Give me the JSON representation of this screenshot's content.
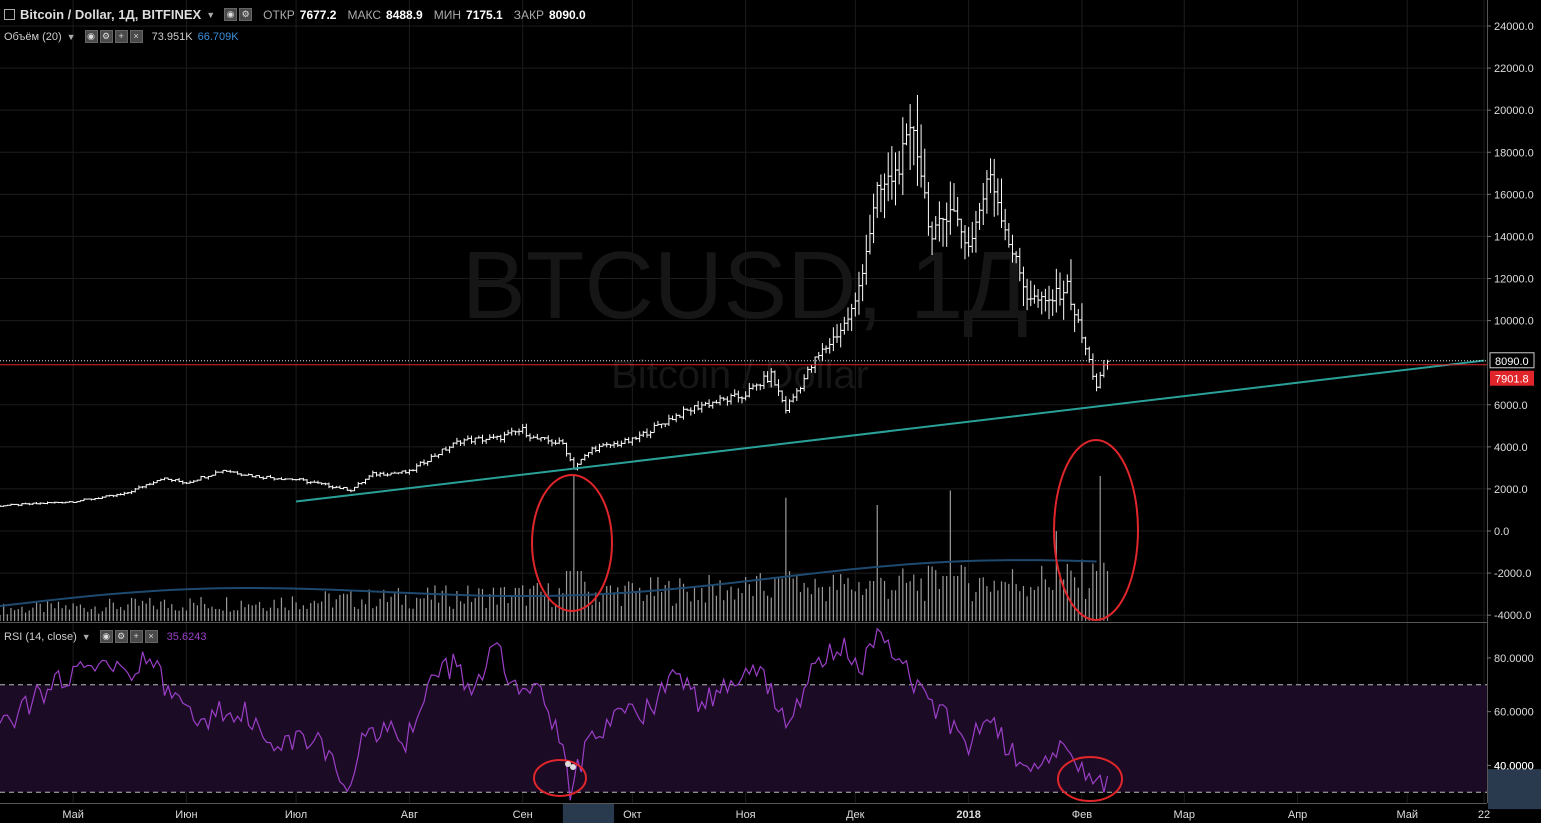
{
  "header": {
    "symbol": "Bitcoin / Dollar, 1Д, BITFINEX",
    "open_label": "ОТКР",
    "open": "7677.2",
    "high_label": "МАКС",
    "high": "8488.9",
    "low_label": "МИН",
    "low": "7175.1",
    "close_label": "ЗАКР",
    "close": "8090.0"
  },
  "volume_legend": {
    "label": "Объём (20)",
    "value1": "73.951K",
    "value2": "66.709K",
    "value2_color": "#3a8fd8"
  },
  "rsi_legend": {
    "label": "RSI (14, close)",
    "value": "35.6243",
    "color": "#9c3fc8"
  },
  "watermark": {
    "big": "BTCUSD, 1Д",
    "small": "Bitcoin / Dollar"
  },
  "price_tags": {
    "last": "8090.0",
    "line": "7901.8",
    "line_color": "#e0262a"
  },
  "colors": {
    "trendline": "#2aa198",
    "volume_ma": "#1e4a70",
    "rsi": "#9c3fc8",
    "rsi_band": "#1b0b24"
  },
  "chart_data": [
    {
      "type": "bar",
      "subtype": "ohlc",
      "title": "Bitcoin / Dollar, 1Д, BITFINEX",
      "y_ticks": [
        24000,
        22000,
        20000,
        18000,
        16000,
        14000,
        12000,
        10000,
        6000,
        4000,
        2000,
        0,
        -2000,
        -4000
      ],
      "y_tick_labels": [
        "24000.0",
        "22000.0",
        "20000.0",
        "18000.0",
        "16000.0",
        "14000.0",
        "12000.0",
        "10000.0",
        "6000.0",
        "4000.0",
        "2000.0",
        "0.0",
        "-2000.0",
        "-4000.0"
      ],
      "ylim": [
        -4000,
        24000
      ],
      "x_tick_labels": [
        "Май",
        "Июн",
        "Июл",
        "Авг",
        "Сен",
        "Окт",
        "Ноя",
        "Дек",
        "2018",
        "Фев",
        "Мар",
        "Апр",
        "Май",
        "22"
      ],
      "xlim": [
        "2017-04-11",
        "2018-05-22"
      ],
      "close_path": [
        [
          "2017-04-11",
          1200
        ],
        [
          "2017-05-01",
          1400
        ],
        [
          "2017-05-15",
          1750
        ],
        [
          "2017-05-25",
          2500
        ],
        [
          "2017-06-01",
          2300
        ],
        [
          "2017-06-11",
          2900
        ],
        [
          "2017-06-20",
          2600
        ],
        [
          "2017-07-01",
          2450
        ],
        [
          "2017-07-16",
          1950
        ],
        [
          "2017-07-22",
          2700
        ],
        [
          "2017-08-01",
          2800
        ],
        [
          "2017-08-05",
          3300
        ],
        [
          "2017-08-15",
          4300
        ],
        [
          "2017-08-25",
          4400
        ],
        [
          "2017-09-01",
          4800
        ],
        [
          "2017-09-04",
          4400
        ],
        [
          "2017-09-12",
          4150
        ],
        [
          "2017-09-15",
          3000
        ],
        [
          "2017-09-20",
          3900
        ],
        [
          "2017-10-01",
          4300
        ],
        [
          "2017-10-12",
          5400
        ],
        [
          "2017-10-20",
          6000
        ],
        [
          "2017-10-31",
          6400
        ],
        [
          "2017-11-08",
          7400
        ],
        [
          "2017-11-12",
          5800
        ],
        [
          "2017-11-20",
          8100
        ],
        [
          "2017-11-28",
          9800
        ],
        [
          "2017-12-01",
          10800
        ],
        [
          "2017-12-07",
          16000
        ],
        [
          "2017-12-12",
          17000
        ],
        [
          "2017-12-17",
          19200
        ],
        [
          "2017-12-22",
          13800
        ],
        [
          "2017-12-27",
          15500
        ],
        [
          "2018-01-01",
          13500
        ],
        [
          "2018-01-07",
          17000
        ],
        [
          "2018-01-12",
          13800
        ],
        [
          "2018-01-17",
          11200
        ],
        [
          "2018-01-22",
          10800
        ],
        [
          "2018-01-28",
          11600
        ],
        [
          "2018-02-01",
          9200
        ],
        [
          "2018-02-05",
          6900
        ],
        [
          "2018-02-08",
          8090
        ]
      ],
      "last_price": 8090.0,
      "level_line": 7901.8,
      "trendline": [
        [
          "2017-07-01",
          1400
        ],
        [
          "2018-05-22",
          8100
        ]
      ],
      "volume_spikes": [
        {
          "x": "2017-09-15",
          "v": 1.0
        },
        {
          "x": "2017-11-12",
          "v": 0.85
        },
        {
          "x": "2017-12-07",
          "v": 0.8
        },
        {
          "x": "2017-12-27",
          "v": 0.9
        },
        {
          "x": "2018-01-25",
          "v": 0.62
        },
        {
          "x": "2018-02-06",
          "v": 1.0
        }
      ],
      "volume_legend": "Объём (20)"
    },
    {
      "type": "line",
      "title": "RSI (14, close)",
      "y_ticks": [
        80,
        60,
        40
      ],
      "y_tick_labels": [
        "80.0000",
        "60.0000",
        "40.0000"
      ],
      "ylim": [
        26,
        93
      ],
      "bands": [
        30,
        70
      ],
      "current_value": 35.6243,
      "x": [
        "2017-04-11",
        "2017-04-18",
        "2017-04-28",
        "2017-05-08",
        "2017-05-16",
        "2017-05-22",
        "2017-05-26",
        "2017-06-05",
        "2017-06-12",
        "2017-06-18",
        "2017-06-27",
        "2017-07-05",
        "2017-07-10",
        "2017-07-16",
        "2017-07-20",
        "2017-07-31",
        "2017-08-05",
        "2017-08-13",
        "2017-08-18",
        "2017-08-24",
        "2017-08-30",
        "2017-09-05",
        "2017-09-10",
        "2017-09-14",
        "2017-09-18",
        "2017-09-26",
        "2017-10-05",
        "2017-10-13",
        "2017-10-20",
        "2017-10-31",
        "2017-11-08",
        "2017-11-12",
        "2017-11-19",
        "2017-11-27",
        "2017-12-03",
        "2017-12-07",
        "2017-12-12",
        "2017-12-17",
        "2017-12-22",
        "2018-01-01",
        "2018-01-07",
        "2018-01-12",
        "2018-01-17",
        "2018-01-27",
        "2018-02-01",
        "2018-02-05",
        "2018-02-08"
      ],
      "y": [
        55,
        62,
        72,
        80,
        72,
        84,
        70,
        55,
        62,
        58,
        48,
        51,
        42,
        30,
        55,
        50,
        68,
        78,
        66,
        85,
        70,
        68,
        55,
        31,
        45,
        58,
        60,
        75,
        62,
        75,
        70,
        55,
        75,
        85,
        78,
        88,
        82,
        72,
        62,
        48,
        60,
        45,
        42,
        45,
        38,
        32,
        36
      ]
    }
  ]
}
